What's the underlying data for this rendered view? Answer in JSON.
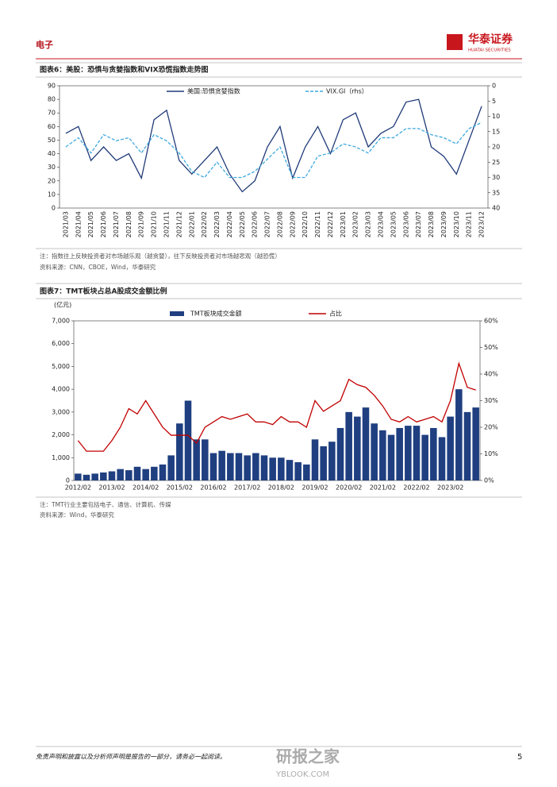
{
  "header": {
    "section": "电子",
    "logo_cn": "华泰证券",
    "logo_en": "HUATAI SECURITIES"
  },
  "chart_data": [
    {
      "type": "line",
      "title": "图表6：美股：恐惧与贪婪指数和VIX恐慌指数走势图",
      "categories": [
        "2021/03",
        "2021/04",
        "2021/05",
        "2021/06",
        "2021/07",
        "2021/08",
        "2021/09",
        "2021/10",
        "2021/11",
        "2021/12",
        "2022/01",
        "2022/02",
        "2022/03",
        "2022/04",
        "2022/05",
        "2022/06",
        "2022/07",
        "2022/08",
        "2022/09",
        "2022/10",
        "2022/11",
        "2022/12",
        "2023/01",
        "2023/02",
        "2023/03",
        "2023/04",
        "2023/05",
        "2023/06",
        "2023/07",
        "2023/08",
        "2023/09",
        "2023/10",
        "2023/11",
        "2023/12"
      ],
      "series": [
        {
          "name": "美国:恐惧贪婪指数",
          "color": "#1f3a78",
          "style": "solid",
          "values": [
            55,
            60,
            35,
            45,
            35,
            40,
            22,
            65,
            72,
            35,
            25,
            35,
            45,
            25,
            12,
            20,
            45,
            60,
            22,
            45,
            60,
            40,
            65,
            70,
            45,
            55,
            60,
            78,
            80,
            45,
            38,
            25,
            50,
            75
          ]
        },
        {
          "name": "VIX.GI（rhs）",
          "color": "#3fa9e0",
          "style": "dashed",
          "axis": "y2",
          "values": [
            20,
            17,
            22,
            16,
            18,
            17,
            22,
            16,
            18,
            22,
            28,
            30,
            25,
            30,
            30,
            28,
            24,
            20,
            30,
            30,
            23,
            22,
            19,
            20,
            22,
            17,
            17,
            14,
            14,
            16,
            17,
            19,
            14,
            12
          ]
        }
      ],
      "ylim": [
        0,
        90
      ],
      "yticks": [
        0,
        10,
        20,
        30,
        40,
        50,
        60,
        70,
        80,
        90
      ],
      "y2lim": [
        40,
        0
      ],
      "y2ticks": [
        0,
        5,
        10,
        15,
        20,
        25,
        30,
        35,
        40
      ],
      "notes": [
        "注：指数往上反映投资者对市场越乐观（越贪婪），往下反映投资者对市场越悲观（越恐慌）",
        "资料来源：CNN，CBOE，Wind，华泰研究"
      ]
    },
    {
      "type": "bar-line",
      "title": "图表7：TMT板块占总A股成交金额比例",
      "y_unit": "(亿元)",
      "categories": [
        "2012/02",
        null,
        null,
        null,
        "2013/02",
        null,
        null,
        null,
        "2014/02",
        null,
        null,
        null,
        "2015/02",
        null,
        null,
        null,
        "2016/02",
        null,
        null,
        null,
        "2017/02",
        null,
        null,
        null,
        "2018/02",
        null,
        null,
        null,
        "2019/02",
        null,
        null,
        null,
        "2020/02",
        null,
        null,
        null,
        "2021/02",
        null,
        null,
        null,
        "2022/02",
        null,
        null,
        null,
        "2023/02",
        null,
        null,
        null
      ],
      "series": [
        {
          "name": "TMT板块成交金额",
          "color": "#1f3f80",
          "kind": "bar",
          "values": [
            300,
            250,
            300,
            350,
            400,
            500,
            450,
            600,
            500,
            600,
            700,
            1100,
            2500,
            3500,
            1800,
            1800,
            1200,
            1300,
            1200,
            1200,
            1100,
            1200,
            1100,
            1000,
            1000,
            900,
            800,
            700,
            1800,
            1500,
            1700,
            2300,
            3000,
            2800,
            3200,
            2500,
            2200,
            2000,
            2300,
            2400,
            2400,
            2000,
            2300,
            1900,
            2800,
            4000,
            3000,
            3200
          ]
        },
        {
          "name": "占比",
          "color": "#c00000",
          "kind": "line",
          "axis": "y2",
          "values": [
            15,
            11,
            11,
            11,
            15,
            20,
            27,
            25,
            30,
            25,
            20,
            17,
            17,
            17,
            14,
            20,
            22,
            24,
            23,
            24,
            25,
            22,
            22,
            21,
            24,
            22,
            22,
            20,
            30,
            26,
            28,
            30,
            38,
            36,
            35,
            32,
            28,
            23,
            22,
            24,
            22,
            23,
            24,
            22,
            30,
            44,
            35,
            34
          ]
        }
      ],
      "ylim": [
        0,
        7000
      ],
      "yticks": [
        0,
        {
          "value": 1000,
          "label": "1,000"
        },
        {
          "value": 2000,
          "label": "2,000"
        },
        {
          "value": 3000,
          "label": "3,000"
        },
        {
          "value": 4000,
          "label": "4,000"
        },
        {
          "value": 5000,
          "label": "5,000"
        },
        {
          "value": 6000,
          "label": "6,000"
        },
        {
          "value": 7000,
          "label": "7,000"
        }
      ],
      "y2lim": [
        0,
        60
      ],
      "y2ticks": [
        {
          "value": 0,
          "label": "0%"
        },
        {
          "value": 10,
          "label": "10%"
        },
        {
          "value": 20,
          "label": "20%"
        },
        {
          "value": 30,
          "label": "30%"
        },
        {
          "value": 40,
          "label": "40%"
        },
        {
          "value": 50,
          "label": "50%"
        },
        {
          "value": 60,
          "label": "60%"
        }
      ],
      "notes": [
        "注：TMT行业主要包括电子、通信、计算机、传媒",
        "资料来源：Wind，华泰研究"
      ]
    }
  ],
  "footer": {
    "disclaimer": "免责声明和披露以及分析师声明是报告的一部分，请务必一起阅读。",
    "page": "5",
    "watermark_cn": "研报之家",
    "watermark_en": "YBLOOK.COM"
  }
}
